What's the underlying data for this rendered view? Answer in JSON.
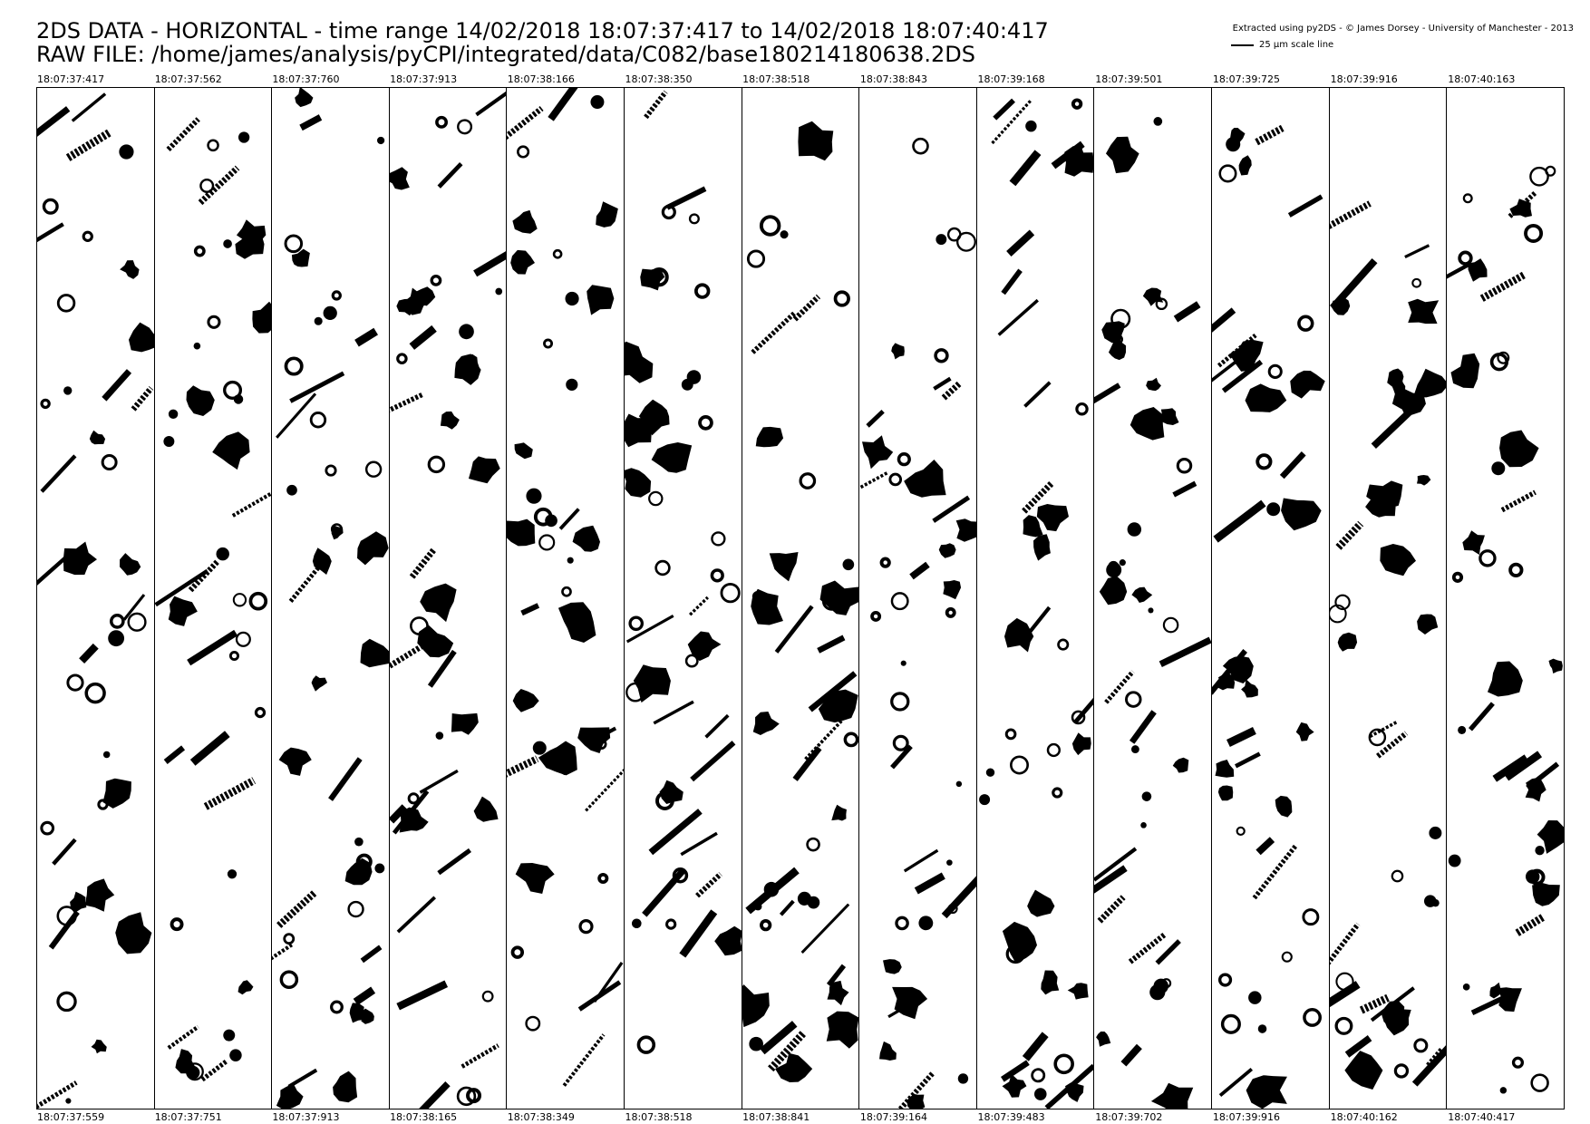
{
  "header": {
    "title_line1": "2DS DATA - HORIZONTAL - time range 14/02/2018 18:07:37:417 to 14/02/2018 18:07:40:417",
    "title_line2": "RAW FILE: /home/james/analysis/pyCPI/integrated/data/C082/base180214180638.2DS",
    "credit": "Extracted using py2DS - © James Dorsey - University of Manchester - 2013",
    "scale_label": "25 μm scale line"
  },
  "strips": [
    {
      "start": "18:07:37:417",
      "end": "18:07:37:559"
    },
    {
      "start": "18:07:37:562",
      "end": "18:07:37:751"
    },
    {
      "start": "18:07:37:760",
      "end": "18:07:37:913"
    },
    {
      "start": "18:07:37:913",
      "end": "18:07:38:165"
    },
    {
      "start": "18:07:38:166",
      "end": "18:07:38:349"
    },
    {
      "start": "18:07:38:350",
      "end": "18:07:38:518"
    },
    {
      "start": "18:07:38:518",
      "end": "18:07:38:841"
    },
    {
      "start": "18:07:38:843",
      "end": "18:07:39:164"
    },
    {
      "start": "18:07:39:168",
      "end": "18:07:39:483"
    },
    {
      "start": "18:07:39:501",
      "end": "18:07:39:702"
    },
    {
      "start": "18:07:39:725",
      "end": "18:07:39:916"
    },
    {
      "start": "18:07:39:916",
      "end": "18:07:40:162"
    },
    {
      "start": "18:07:40:163",
      "end": "18:07:40:417"
    }
  ],
  "colors": {
    "ink": "#000000",
    "background": "#ffffff"
  }
}
